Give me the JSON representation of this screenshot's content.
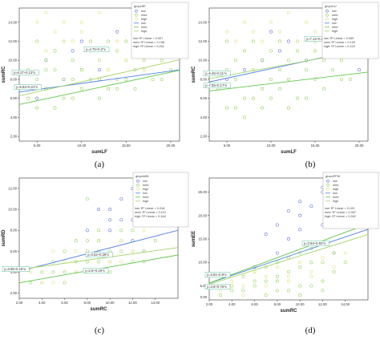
{
  "colors": {
    "low": "#5a6fd8",
    "med": "#8fd14f",
    "high": "#e3e07a",
    "fit_low": "#4f82e6",
    "fit_med": "#62c94a",
    "fit_high": "#a7d66a",
    "frame": "#333333",
    "annotation_box": "#5fbf9e"
  },
  "chart_data": [
    {
      "type": "scatter",
      "label": "(a)",
      "xlabel": "sumLF",
      "ylabel": "sumRC",
      "xlim": [
        3,
        21
      ],
      "ylim": [
        1.5,
        15.5
      ],
      "xticks": [
        "5.00",
        "10.00",
        "15.00",
        "20.00"
      ],
      "xtick_values": [
        5,
        10,
        15,
        20
      ],
      "yticks": [
        "2.00",
        "4.00",
        "6.00",
        "8.00",
        "10.00",
        "12.00",
        "14.00"
      ],
      "ytick_values": [
        2,
        4,
        6,
        8,
        10,
        12,
        14
      ],
      "legend": {
        "title": "grupoSE",
        "entries": [
          "low",
          "med",
          "high",
          "low",
          "med",
          "high"
        ],
        "stats": [
          "low: R² Linear = 0.007",
          "med: R² Linear = 0.196",
          "high: R² Linear = 0.261"
        ]
      },
      "annotations": [
        "y=6.27+0.13*x",
        "y=4.75+0.2*x",
        "y=5.64+0.21*x"
      ],
      "series": [
        {
          "name": "low",
          "x": [
            6,
            8,
            10,
            12,
            9,
            5,
            14
          ],
          "y": [
            10,
            8,
            12,
            9,
            11,
            6,
            13
          ]
        },
        {
          "name": "med",
          "x": [
            4,
            5,
            5,
            6,
            6,
            7,
            7,
            8,
            8,
            9,
            9,
            10,
            10,
            11,
            11,
            12,
            12,
            13,
            13,
            14,
            14,
            15,
            15,
            16,
            16,
            17,
            17,
            18,
            18,
            19,
            19,
            20,
            20,
            5,
            7,
            9,
            11,
            13,
            15,
            17,
            19,
            6,
            8,
            10,
            12,
            14,
            16,
            18,
            20,
            4
          ],
          "y": [
            6,
            8,
            12,
            7,
            10,
            9,
            11,
            6,
            12,
            8,
            10,
            7,
            9,
            11,
            12,
            6,
            10,
            9,
            12,
            8,
            11,
            10,
            12,
            9,
            11,
            10,
            12,
            11,
            12,
            10,
            11,
            12,
            13,
            5,
            5,
            6,
            8,
            7,
            8,
            9,
            8,
            9,
            8,
            9,
            8,
            7,
            7,
            8,
            9,
            9
          ]
        },
        {
          "name": "high",
          "x": [
            5,
            6,
            7,
            8,
            9,
            10,
            11,
            12,
            13,
            14,
            15,
            16,
            17,
            18,
            19,
            20,
            6,
            8,
            10,
            12
          ],
          "y": [
            14,
            11,
            13,
            12,
            12,
            13,
            11,
            10,
            9,
            12,
            10,
            11,
            9,
            12,
            13,
            12,
            15,
            14,
            14,
            15
          ]
        }
      ],
      "fits": [
        {
          "name": "low",
          "intercept": 6.27,
          "slope": 0.13
        },
        {
          "name": "med",
          "intercept": 4.75,
          "slope": 0.2
        },
        {
          "name": "high",
          "intercept": 5.64,
          "slope": 0.21
        }
      ]
    },
    {
      "type": "scatter",
      "label": "(b)",
      "xlabel": "sumLF",
      "ylabel": "sumRC",
      "xlim": [
        3,
        21
      ],
      "ylim": [
        1.5,
        15.5
      ],
      "xticks": [
        "5.00",
        "10.00",
        "15.00",
        "20.00"
      ],
      "xtick_values": [
        5,
        10,
        15,
        20
      ],
      "yticks": [
        "2.00",
        "4.00",
        "6.00",
        "8.00",
        "10.00",
        "12.00",
        "14.00"
      ],
      "ytick_values": [
        2,
        4,
        6,
        8,
        10,
        12,
        14
      ],
      "legend": {
        "title": "grupoLU",
        "entries": [
          "low",
          "med",
          "high",
          "low",
          "med",
          "high"
        ],
        "stats": [
          "low: R² Linear = 0.069",
          "med: R² Linear = 0.100",
          "high: R² Linear = 0.122"
        ]
      },
      "annotations": [
        "y=7.12+0.2*x",
        "y=6.45+0.11*x",
        "y=7.55+0.17*x"
      ],
      "series": [
        {
          "name": "low",
          "x": [
            7,
            9,
            11,
            12,
            14,
            16,
            18,
            20,
            5,
            10
          ],
          "y": [
            9,
            10,
            11,
            12,
            10,
            13,
            12,
            9,
            8,
            13
          ]
        },
        {
          "name": "med",
          "x": [
            4,
            5,
            5,
            6,
            6,
            7,
            7,
            8,
            8,
            9,
            9,
            10,
            10,
            11,
            11,
            12,
            12,
            13,
            13,
            14,
            14,
            15,
            15,
            16,
            16,
            17,
            17,
            18,
            18,
            19,
            19,
            20,
            6,
            8,
            10,
            12,
            14,
            16,
            18,
            5,
            7,
            9,
            11,
            13,
            15
          ],
          "y": [
            7,
            9,
            12,
            8,
            10,
            6,
            11,
            9,
            12,
            7,
            10,
            8,
            11,
            9,
            12,
            10,
            8,
            11,
            12,
            9,
            10,
            11,
            12,
            10,
            11,
            9,
            12,
            10,
            11,
            12,
            8,
            12,
            5,
            6,
            6,
            5,
            6,
            7,
            8,
            5,
            4,
            5,
            7,
            6,
            8
          ]
        },
        {
          "name": "high",
          "x": [
            5,
            6,
            7,
            8,
            9,
            10,
            11,
            12,
            13,
            14,
            15,
            16,
            17,
            18,
            19,
            20
          ],
          "y": [
            13,
            12,
            14,
            13,
            12,
            14,
            13,
            15,
            12,
            14,
            13,
            12,
            14,
            13,
            12,
            11
          ]
        }
      ],
      "fits": [
        {
          "name": "low",
          "intercept": 7.12,
          "slope": 0.2
        },
        {
          "name": "med",
          "intercept": 6.45,
          "slope": 0.11
        },
        {
          "name": "high",
          "intercept": 7.55,
          "slope": 0.17
        }
      ]
    },
    {
      "type": "scatter",
      "label": "(c)",
      "xlabel": "sumRC",
      "ylabel": "sumRD",
      "xlim": [
        2,
        16
      ],
      "ylim": [
        1.5,
        13
      ],
      "xticks": [
        "2.00",
        "4.00",
        "6.00",
        "8.00",
        "10.00",
        "12.00",
        "14.00"
      ],
      "xtick_values": [
        2,
        4,
        6,
        8,
        10,
        12,
        14
      ],
      "yticks": [
        "2.00",
        "4.00",
        "6.00",
        "8.00",
        "10.00",
        "12.00"
      ],
      "ytick_values": [
        2,
        4,
        6,
        8,
        10,
        12
      ],
      "legend": {
        "title": "grupoMW",
        "entries": [
          "low",
          "med",
          "high",
          "low",
          "med",
          "high"
        ],
        "stats": [
          "low: R² Linear = 0.018",
          "med: R² Linear = 0.113",
          "high: R² Linear = 0.164"
        ]
      },
      "annotations": [
        "y=3.52+0.28*x",
        "y=2.6+0.19*x",
        "y=3.95+0.15*x"
      ],
      "series": [
        {
          "name": "low",
          "x": [
            8,
            9,
            10,
            11,
            12,
            10,
            11,
            12,
            9,
            8,
            12,
            13,
            10
          ],
          "y": [
            8,
            10,
            9,
            11,
            12,
            8,
            9,
            7,
            6,
            7,
            9,
            6,
            10
          ]
        },
        {
          "name": "med",
          "x": [
            3,
            4,
            5,
            6,
            7,
            8,
            9,
            10,
            11,
            12,
            13,
            14,
            4,
            6,
            8,
            10,
            12,
            5,
            7,
            9,
            11,
            13,
            6,
            8,
            10,
            12,
            9,
            11,
            7,
            8
          ],
          "y": [
            3,
            4,
            5,
            4,
            5,
            6,
            7,
            6,
            7,
            8,
            6,
            7,
            3,
            3,
            4,
            5,
            5,
            4,
            4,
            5,
            6,
            5,
            6,
            5,
            4,
            6,
            8,
            8,
            7,
            11
          ]
        },
        {
          "name": "high",
          "x": [
            3,
            4,
            5,
            6,
            7,
            8,
            9,
            10,
            11,
            12,
            13,
            5,
            7,
            9,
            11
          ],
          "y": [
            4,
            3,
            6,
            5,
            4,
            7,
            6,
            5,
            7,
            6,
            8,
            3,
            6,
            4,
            5
          ]
        }
      ],
      "fits": [
        {
          "name": "low",
          "intercept": 3.52,
          "slope": 0.28
        },
        {
          "name": "med",
          "intercept": 2.6,
          "slope": 0.19
        },
        {
          "name": "high",
          "intercept": 3.95,
          "slope": 0.15
        }
      ]
    },
    {
      "type": "scatter",
      "label": "(d)",
      "xlabel": "sumRC",
      "ylabel": "sumEE",
      "xlim": [
        2,
        16
      ],
      "ylim": [
        2,
        28
      ],
      "xticks": [
        "2.00",
        "4.00",
        "6.00",
        "8.00",
        "10.00",
        "12.00",
        "14.00"
      ],
      "xtick_values": [
        2,
        4,
        6,
        8,
        10,
        12,
        14
      ],
      "yticks": [
        "5.00",
        "10.00",
        "15.00",
        "20.00",
        "25.00"
      ],
      "ytick_values": [
        5,
        10,
        15,
        20,
        25
      ],
      "extra_ytick_label": "0.00",
      "legend": {
        "title": "grupoPFW",
        "entries": [
          "low",
          "med",
          "high",
          "low",
          "med",
          "high"
        ],
        "stats": [
          "low: R² Linear = 0.103",
          "med: R² Linear = 0.067",
          "high: R² Linear = 0.262"
        ]
      },
      "annotations": [
        "y=3.94+0.82*x",
        "y=3.81+0.9*x",
        "y=3.8+0.76*x"
      ],
      "series": [
        {
          "name": "low",
          "x": [
            6,
            8,
            9,
            10,
            11,
            12,
            12,
            10,
            8,
            11,
            9,
            13,
            12,
            10,
            7
          ],
          "y": [
            9,
            12,
            15,
            20,
            22,
            25,
            26,
            17,
            18,
            14,
            21,
            12,
            18,
            23,
            16
          ]
        },
        {
          "name": "med",
          "x": [
            3,
            4,
            5,
            6,
            7,
            8,
            9,
            10,
            11,
            12,
            13,
            14,
            4,
            6,
            8,
            10,
            12,
            5,
            7,
            9,
            11,
            13,
            6,
            8,
            10,
            12,
            9,
            11,
            7,
            8,
            10,
            12
          ],
          "y": [
            3,
            5,
            7,
            6,
            9,
            10,
            11,
            12,
            13,
            14,
            12,
            10,
            4,
            8,
            6,
            9,
            10,
            4,
            6,
            8,
            10,
            8,
            5,
            7,
            5,
            6,
            4,
            5,
            3,
            4,
            3,
            4
          ]
        },
        {
          "name": "high",
          "x": [
            3,
            4,
            5,
            6,
            7,
            8,
            9,
            10,
            11,
            12,
            13,
            14,
            5,
            7,
            9,
            11
          ],
          "y": [
            4,
            6,
            5,
            8,
            7,
            9,
            7,
            10,
            8,
            11,
            9,
            12,
            3,
            5,
            6,
            7
          ]
        }
      ],
      "fits": [
        {
          "name": "low",
          "intercept": 3.94,
          "slope": 0.82
        },
        {
          "name": "med",
          "intercept": 3.81,
          "slope": 0.9
        },
        {
          "name": "high",
          "intercept": 3.8,
          "slope": 0.76
        }
      ]
    }
  ]
}
